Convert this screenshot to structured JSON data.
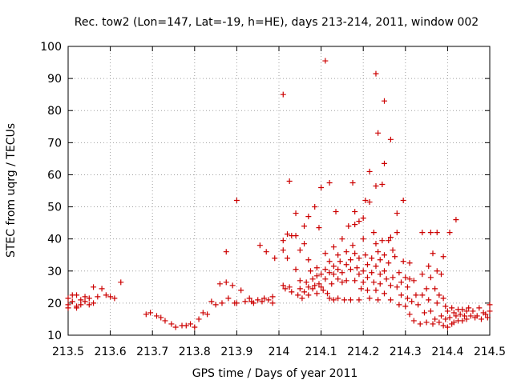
{
  "chart_data": {
    "type": "scatter",
    "title": "Rec. tow2 (Lon=147, Lat=-19, h=HE), days 213-214, 2011, window 002",
    "xlabel": "GPS time / Days of year 2011",
    "ylabel": "STEC from uqrg / TECUs",
    "xlim": [
      213.5,
      214.5
    ],
    "ylim": [
      10,
      100
    ],
    "xticks": [
      213.5,
      213.6,
      213.7,
      213.8,
      213.9,
      214,
      214.1,
      214.2,
      214.3,
      214.4,
      214.5
    ],
    "xtick_labels": [
      "213.5",
      "213.6",
      "213.7",
      "213.8",
      "213.9",
      "214",
      "214.1",
      "214.2",
      "214.3",
      "214.4",
      "214.5"
    ],
    "yticks": [
      10,
      20,
      30,
      40,
      50,
      60,
      70,
      80,
      90,
      100
    ],
    "ytick_labels": [
      "10",
      "20",
      "30",
      "40",
      "50",
      "60",
      "70",
      "80",
      "90",
      "100"
    ],
    "grid": true,
    "legend": "none",
    "marker": "+",
    "color": "#cc0000",
    "points": [
      [
        213.5,
        21.5
      ],
      [
        213.5,
        19.5
      ],
      [
        213.5,
        18.5
      ],
      [
        213.51,
        22.5
      ],
      [
        213.51,
        20.5
      ],
      [
        213.52,
        19.0
      ],
      [
        213.52,
        22.5
      ],
      [
        213.52,
        18.5
      ],
      [
        213.53,
        21.0
      ],
      [
        213.53,
        19.5
      ],
      [
        213.54,
        22.0
      ],
      [
        213.54,
        20.5
      ],
      [
        213.55,
        21.5
      ],
      [
        213.55,
        19.5
      ],
      [
        213.56,
        25.0
      ],
      [
        213.56,
        20.0
      ],
      [
        213.57,
        22.0
      ],
      [
        213.58,
        24.5
      ],
      [
        213.59,
        22.5
      ],
      [
        213.6,
        22.0
      ],
      [
        213.61,
        21.5
      ],
      [
        213.625,
        26.5
      ],
      [
        213.685,
        16.5
      ],
      [
        213.695,
        17.0
      ],
      [
        213.71,
        16.0
      ],
      [
        213.72,
        15.5
      ],
      [
        213.73,
        14.5
      ],
      [
        213.745,
        13.5
      ],
      [
        213.755,
        12.5
      ],
      [
        213.77,
        13.0
      ],
      [
        213.78,
        13.0
      ],
      [
        213.79,
        13.5
      ],
      [
        213.8,
        12.5
      ],
      [
        213.81,
        15.0
      ],
      [
        213.82,
        17.0
      ],
      [
        213.83,
        16.5
      ],
      [
        213.84,
        20.5
      ],
      [
        213.85,
        19.5
      ],
      [
        213.86,
        26.0
      ],
      [
        213.865,
        20.0
      ],
      [
        213.875,
        26.5
      ],
      [
        213.875,
        36.0
      ],
      [
        213.88,
        21.5
      ],
      [
        213.89,
        25.5
      ],
      [
        213.895,
        20.0
      ],
      [
        213.9,
        52.0
      ],
      [
        213.9,
        20.0
      ],
      [
        213.91,
        24.0
      ],
      [
        213.92,
        20.5
      ],
      [
        213.93,
        21.5
      ],
      [
        213.935,
        20.5
      ],
      [
        213.94,
        20.0
      ],
      [
        213.95,
        21.0
      ],
      [
        213.955,
        38.0
      ],
      [
        213.96,
        20.5
      ],
      [
        213.965,
        21.5
      ],
      [
        213.97,
        36.0
      ],
      [
        213.975,
        21.0
      ],
      [
        213.985,
        22.0
      ],
      [
        213.985,
        20.0
      ],
      [
        213.99,
        34.0
      ],
      [
        214.01,
        85.0
      ],
      [
        214.01,
        39.5
      ],
      [
        214.01,
        36.5
      ],
      [
        214.01,
        25.5
      ],
      [
        214.015,
        24.5
      ],
      [
        214.02,
        34.0
      ],
      [
        214.02,
        41.5
      ],
      [
        214.025,
        58.0
      ],
      [
        214.025,
        25.0
      ],
      [
        214.03,
        23.5
      ],
      [
        214.03,
        41.0
      ],
      [
        214.04,
        48.0
      ],
      [
        214.04,
        41.0
      ],
      [
        214.04,
        30.5
      ],
      [
        214.045,
        22.5
      ],
      [
        214.05,
        36.5
      ],
      [
        214.05,
        27.0
      ],
      [
        214.05,
        24.5
      ],
      [
        214.055,
        21.5
      ],
      [
        214.06,
        44.0
      ],
      [
        214.06,
        38.5
      ],
      [
        214.06,
        23.5
      ],
      [
        214.065,
        26.5
      ],
      [
        214.07,
        47.0
      ],
      [
        214.07,
        33.5
      ],
      [
        214.07,
        25.0
      ],
      [
        214.07,
        22.5
      ],
      [
        214.075,
        30.0
      ],
      [
        214.08,
        27.5
      ],
      [
        214.08,
        24.5
      ],
      [
        214.085,
        50.0
      ],
      [
        214.085,
        25.5
      ],
      [
        214.09,
        31.0
      ],
      [
        214.09,
        28.5
      ],
      [
        214.09,
        23.0
      ],
      [
        214.095,
        43.5
      ],
      [
        214.095,
        26.0
      ],
      [
        214.1,
        56.0
      ],
      [
        214.1,
        29.0
      ],
      [
        214.1,
        25.0
      ],
      [
        214.105,
        24.0
      ],
      [
        214.11,
        95.5
      ],
      [
        214.11,
        35.5
      ],
      [
        214.11,
        30.5
      ],
      [
        214.11,
        27.5
      ],
      [
        214.115,
        23.0
      ],
      [
        214.12,
        57.5
      ],
      [
        214.12,
        33.0
      ],
      [
        214.12,
        29.5
      ],
      [
        214.12,
        21.5
      ],
      [
        214.125,
        26.0
      ],
      [
        214.13,
        37.5
      ],
      [
        214.13,
        31.5
      ],
      [
        214.13,
        29.0
      ],
      [
        214.13,
        21.0
      ],
      [
        214.135,
        48.5
      ],
      [
        214.14,
        35.0
      ],
      [
        214.14,
        30.5
      ],
      [
        214.14,
        27.5
      ],
      [
        214.14,
        21.5
      ],
      [
        214.145,
        33.0
      ],
      [
        214.15,
        40.0
      ],
      [
        214.15,
        29.5
      ],
      [
        214.15,
        26.5
      ],
      [
        214.155,
        21.0
      ],
      [
        214.16,
        36.0
      ],
      [
        214.16,
        32.0
      ],
      [
        214.16,
        27.0
      ],
      [
        214.165,
        44.0
      ],
      [
        214.17,
        33.5
      ],
      [
        214.17,
        30.5
      ],
      [
        214.17,
        21.0
      ],
      [
        214.175,
        57.5
      ],
      [
        214.175,
        38.0
      ],
      [
        214.18,
        48.5
      ],
      [
        214.18,
        44.5
      ],
      [
        214.18,
        35.5
      ],
      [
        214.18,
        27.0
      ],
      [
        214.185,
        31.0
      ],
      [
        214.19,
        45.5
      ],
      [
        214.19,
        34.0
      ],
      [
        214.19,
        29.0
      ],
      [
        214.19,
        21.0
      ],
      [
        214.195,
        24.5
      ],
      [
        214.2,
        46.5
      ],
      [
        214.2,
        40.0
      ],
      [
        214.2,
        30.0
      ],
      [
        214.2,
        26.5
      ],
      [
        214.205,
        52.0
      ],
      [
        214.205,
        35.0
      ],
      [
        214.21,
        32.0
      ],
      [
        214.21,
        28.0
      ],
      [
        214.21,
        24.0
      ],
      [
        214.215,
        61.0
      ],
      [
        214.215,
        51.5
      ],
      [
        214.215,
        21.5
      ],
      [
        214.22,
        34.0
      ],
      [
        214.22,
        29.5
      ],
      [
        214.225,
        42.0
      ],
      [
        214.225,
        26.5
      ],
      [
        214.23,
        91.5
      ],
      [
        214.23,
        56.5
      ],
      [
        214.23,
        38.5
      ],
      [
        214.23,
        31.5
      ],
      [
        214.23,
        24.0
      ],
      [
        214.235,
        73.0
      ],
      [
        214.235,
        36.0
      ],
      [
        214.235,
        21.0
      ],
      [
        214.24,
        33.5
      ],
      [
        214.24,
        29.0
      ],
      [
        214.24,
        26.0
      ],
      [
        214.245,
        57.0
      ],
      [
        214.245,
        39.5
      ],
      [
        214.25,
        83.0
      ],
      [
        214.25,
        63.5
      ],
      [
        214.25,
        35.0
      ],
      [
        214.25,
        30.0
      ],
      [
        214.25,
        23.0
      ],
      [
        214.255,
        27.5
      ],
      [
        214.26,
        39.5
      ],
      [
        214.26,
        32.5
      ],
      [
        214.265,
        71.0
      ],
      [
        214.265,
        40.5
      ],
      [
        214.265,
        25.5
      ],
      [
        214.265,
        21.0
      ],
      [
        214.27,
        28.0
      ],
      [
        214.27,
        36.5
      ],
      [
        214.275,
        34.5
      ],
      [
        214.28,
        48.0
      ],
      [
        214.28,
        42.0
      ],
      [
        214.28,
        25.0
      ],
      [
        214.285,
        29.5
      ],
      [
        214.285,
        19.5
      ],
      [
        214.29,
        26.5
      ],
      [
        214.29,
        22.5
      ],
      [
        214.295,
        52.0
      ],
      [
        214.295,
        33.0
      ],
      [
        214.3,
        28.0
      ],
      [
        214.3,
        19.0
      ],
      [
        214.305,
        25.0
      ],
      [
        214.305,
        21.5
      ],
      [
        214.31,
        32.5
      ],
      [
        214.31,
        27.5
      ],
      [
        214.31,
        16.5
      ],
      [
        214.315,
        20.5
      ],
      [
        214.32,
        27.0
      ],
      [
        214.32,
        14.5
      ],
      [
        214.325,
        22.5
      ],
      [
        214.33,
        19.5
      ],
      [
        214.335,
        13.5
      ],
      [
        214.34,
        42.0
      ],
      [
        214.34,
        29.0
      ],
      [
        214.34,
        22.5
      ],
      [
        214.345,
        17.0
      ],
      [
        214.35,
        24.5
      ],
      [
        214.35,
        14.0
      ],
      [
        214.355,
        31.5
      ],
      [
        214.355,
        21.0
      ],
      [
        214.36,
        28.0
      ],
      [
        214.36,
        42.0
      ],
      [
        214.36,
        17.5
      ],
      [
        214.365,
        35.5
      ],
      [
        214.365,
        13.5
      ],
      [
        214.37,
        24.5
      ],
      [
        214.37,
        15.0
      ],
      [
        214.375,
        42.0
      ],
      [
        214.375,
        30.0
      ],
      [
        214.375,
        20.0
      ],
      [
        214.38,
        22.5
      ],
      [
        214.38,
        14.0
      ],
      [
        214.385,
        29.0
      ],
      [
        214.385,
        16.0
      ],
      [
        214.39,
        34.5
      ],
      [
        214.39,
        21.5
      ],
      [
        214.39,
        13.0
      ],
      [
        214.395,
        19.0
      ],
      [
        214.395,
        15.0
      ],
      [
        214.4,
        17.5
      ],
      [
        214.4,
        12.5
      ],
      [
        214.405,
        42.0
      ],
      [
        214.405,
        15.5
      ],
      [
        214.41,
        18.5
      ],
      [
        214.41,
        13.5
      ],
      [
        214.415,
        17.0
      ],
      [
        214.415,
        14.0
      ],
      [
        214.42,
        46.0
      ],
      [
        214.42,
        16.0
      ],
      [
        214.425,
        18.0
      ],
      [
        214.425,
        14.5
      ],
      [
        214.43,
        16.5
      ],
      [
        214.435,
        18.0
      ],
      [
        214.435,
        14.5
      ],
      [
        214.44,
        16.0
      ],
      [
        214.445,
        17.5
      ],
      [
        214.445,
        15.0
      ],
      [
        214.45,
        18.5
      ],
      [
        214.455,
        16.0
      ],
      [
        214.46,
        17.5
      ],
      [
        214.465,
        15.5
      ],
      [
        214.47,
        16.0
      ],
      [
        214.475,
        18.5
      ],
      [
        214.48,
        15.0
      ],
      [
        214.485,
        17.0
      ],
      [
        214.49,
        16.5
      ],
      [
        214.495,
        15.5
      ],
      [
        214.5,
        19.5
      ],
      [
        214.5,
        17.5
      ]
    ]
  }
}
